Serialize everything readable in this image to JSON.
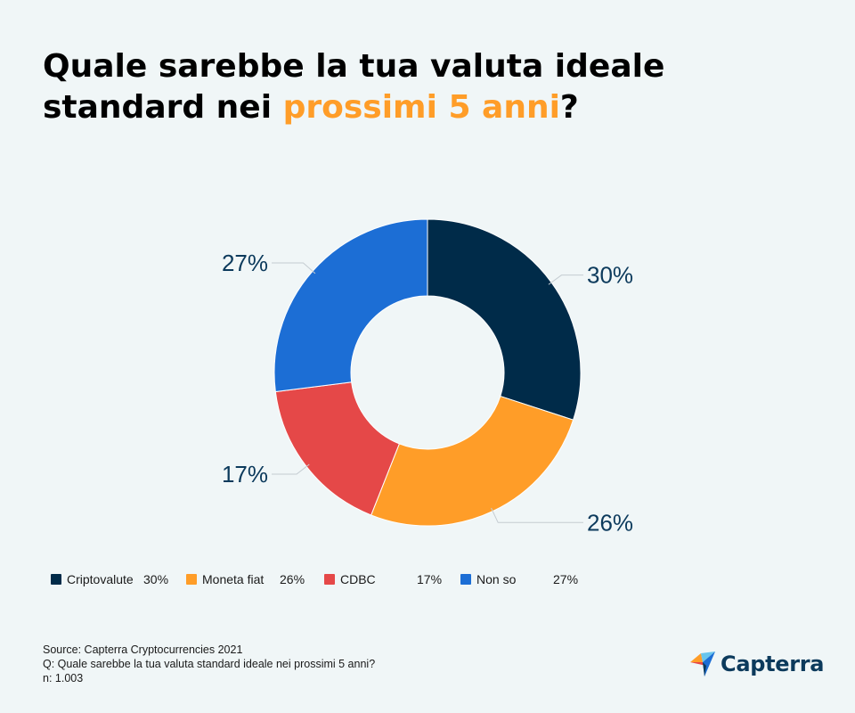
{
  "title": {
    "line1": "Quale sarebbe la tua valuta ideale",
    "line2_prefix": "standard nei ",
    "line2_highlight": "prossimi 5 anni",
    "line2_suffix": "?"
  },
  "colors": {
    "background": "#f0f6f7",
    "highlight": "#ff9d28",
    "criptovalute": "#002b49",
    "moneta_fiat": "#ff9d28",
    "cdbc": "#e54848",
    "non_so": "#1c6ed5",
    "label_text": "#0c3a5c"
  },
  "chart_data": {
    "type": "pie",
    "donut": true,
    "slices": [
      {
        "name": "Criptovalute",
        "value": 30,
        "label": "30%",
        "color": "#002b49"
      },
      {
        "name": "Moneta fiat",
        "value": 26,
        "label": "26%",
        "color": "#ff9d28"
      },
      {
        "name": "CDBC",
        "value": 17,
        "label": "17%",
        "color": "#e54848"
      },
      {
        "name": "Non so",
        "value": 27,
        "label": "27%",
        "color": "#1c6ed5"
      }
    ],
    "legend_position": "bottom"
  },
  "legend": [
    {
      "name": "Criptovalute",
      "value": "30%"
    },
    {
      "name": "Moneta fiat",
      "value": "26%"
    },
    {
      "name": "CDBC",
      "value": "17%"
    },
    {
      "name": "Non so",
      "value": "27%"
    }
  ],
  "footer": {
    "source": "Source: Capterra Cryptocurrencies 2021",
    "question": "Q: Quale sarebbe la tua valuta standard ideale nei prossimi 5 anni?",
    "n": "n: 1.003"
  },
  "logo": {
    "text": "Capterra",
    "icon": "capterra-logo-icon"
  }
}
